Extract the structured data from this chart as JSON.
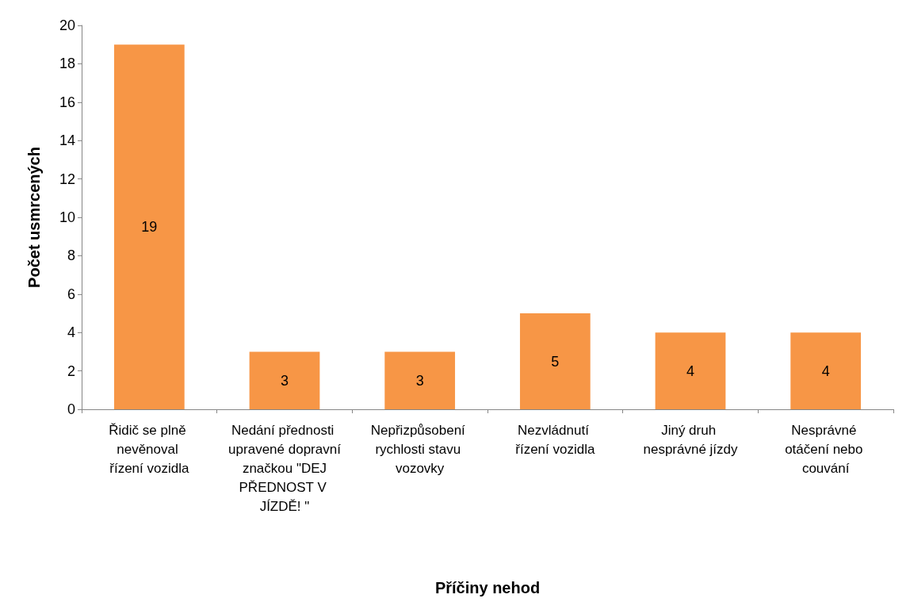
{
  "chart_data": {
    "type": "bar",
    "xlabel": "Příčiny nehod",
    "ylabel": "Počet usmrcených",
    "categories": [
      "Řidič se plně nevěnoval řízení vozidla",
      "Nedání přednosti upravené dopravní značkou \"DEJ PŘEDNOST V JÍZDĚ! \"",
      "Nepřizpůsobení rychlosti stavu vozovky",
      "Nezvládnutí řízení vozidla",
      "Jiný druh nesprávné jízdy",
      "Nesprávné otáčení nebo couvání"
    ],
    "values": [
      19,
      3,
      3,
      5,
      4,
      4
    ],
    "color": "#f79646",
    "ylim": [
      0,
      20
    ],
    "yticks": [
      0,
      2,
      4,
      6,
      8,
      10,
      12,
      14,
      16,
      18,
      20
    ],
    "data_labels": true,
    "grid": false
  }
}
